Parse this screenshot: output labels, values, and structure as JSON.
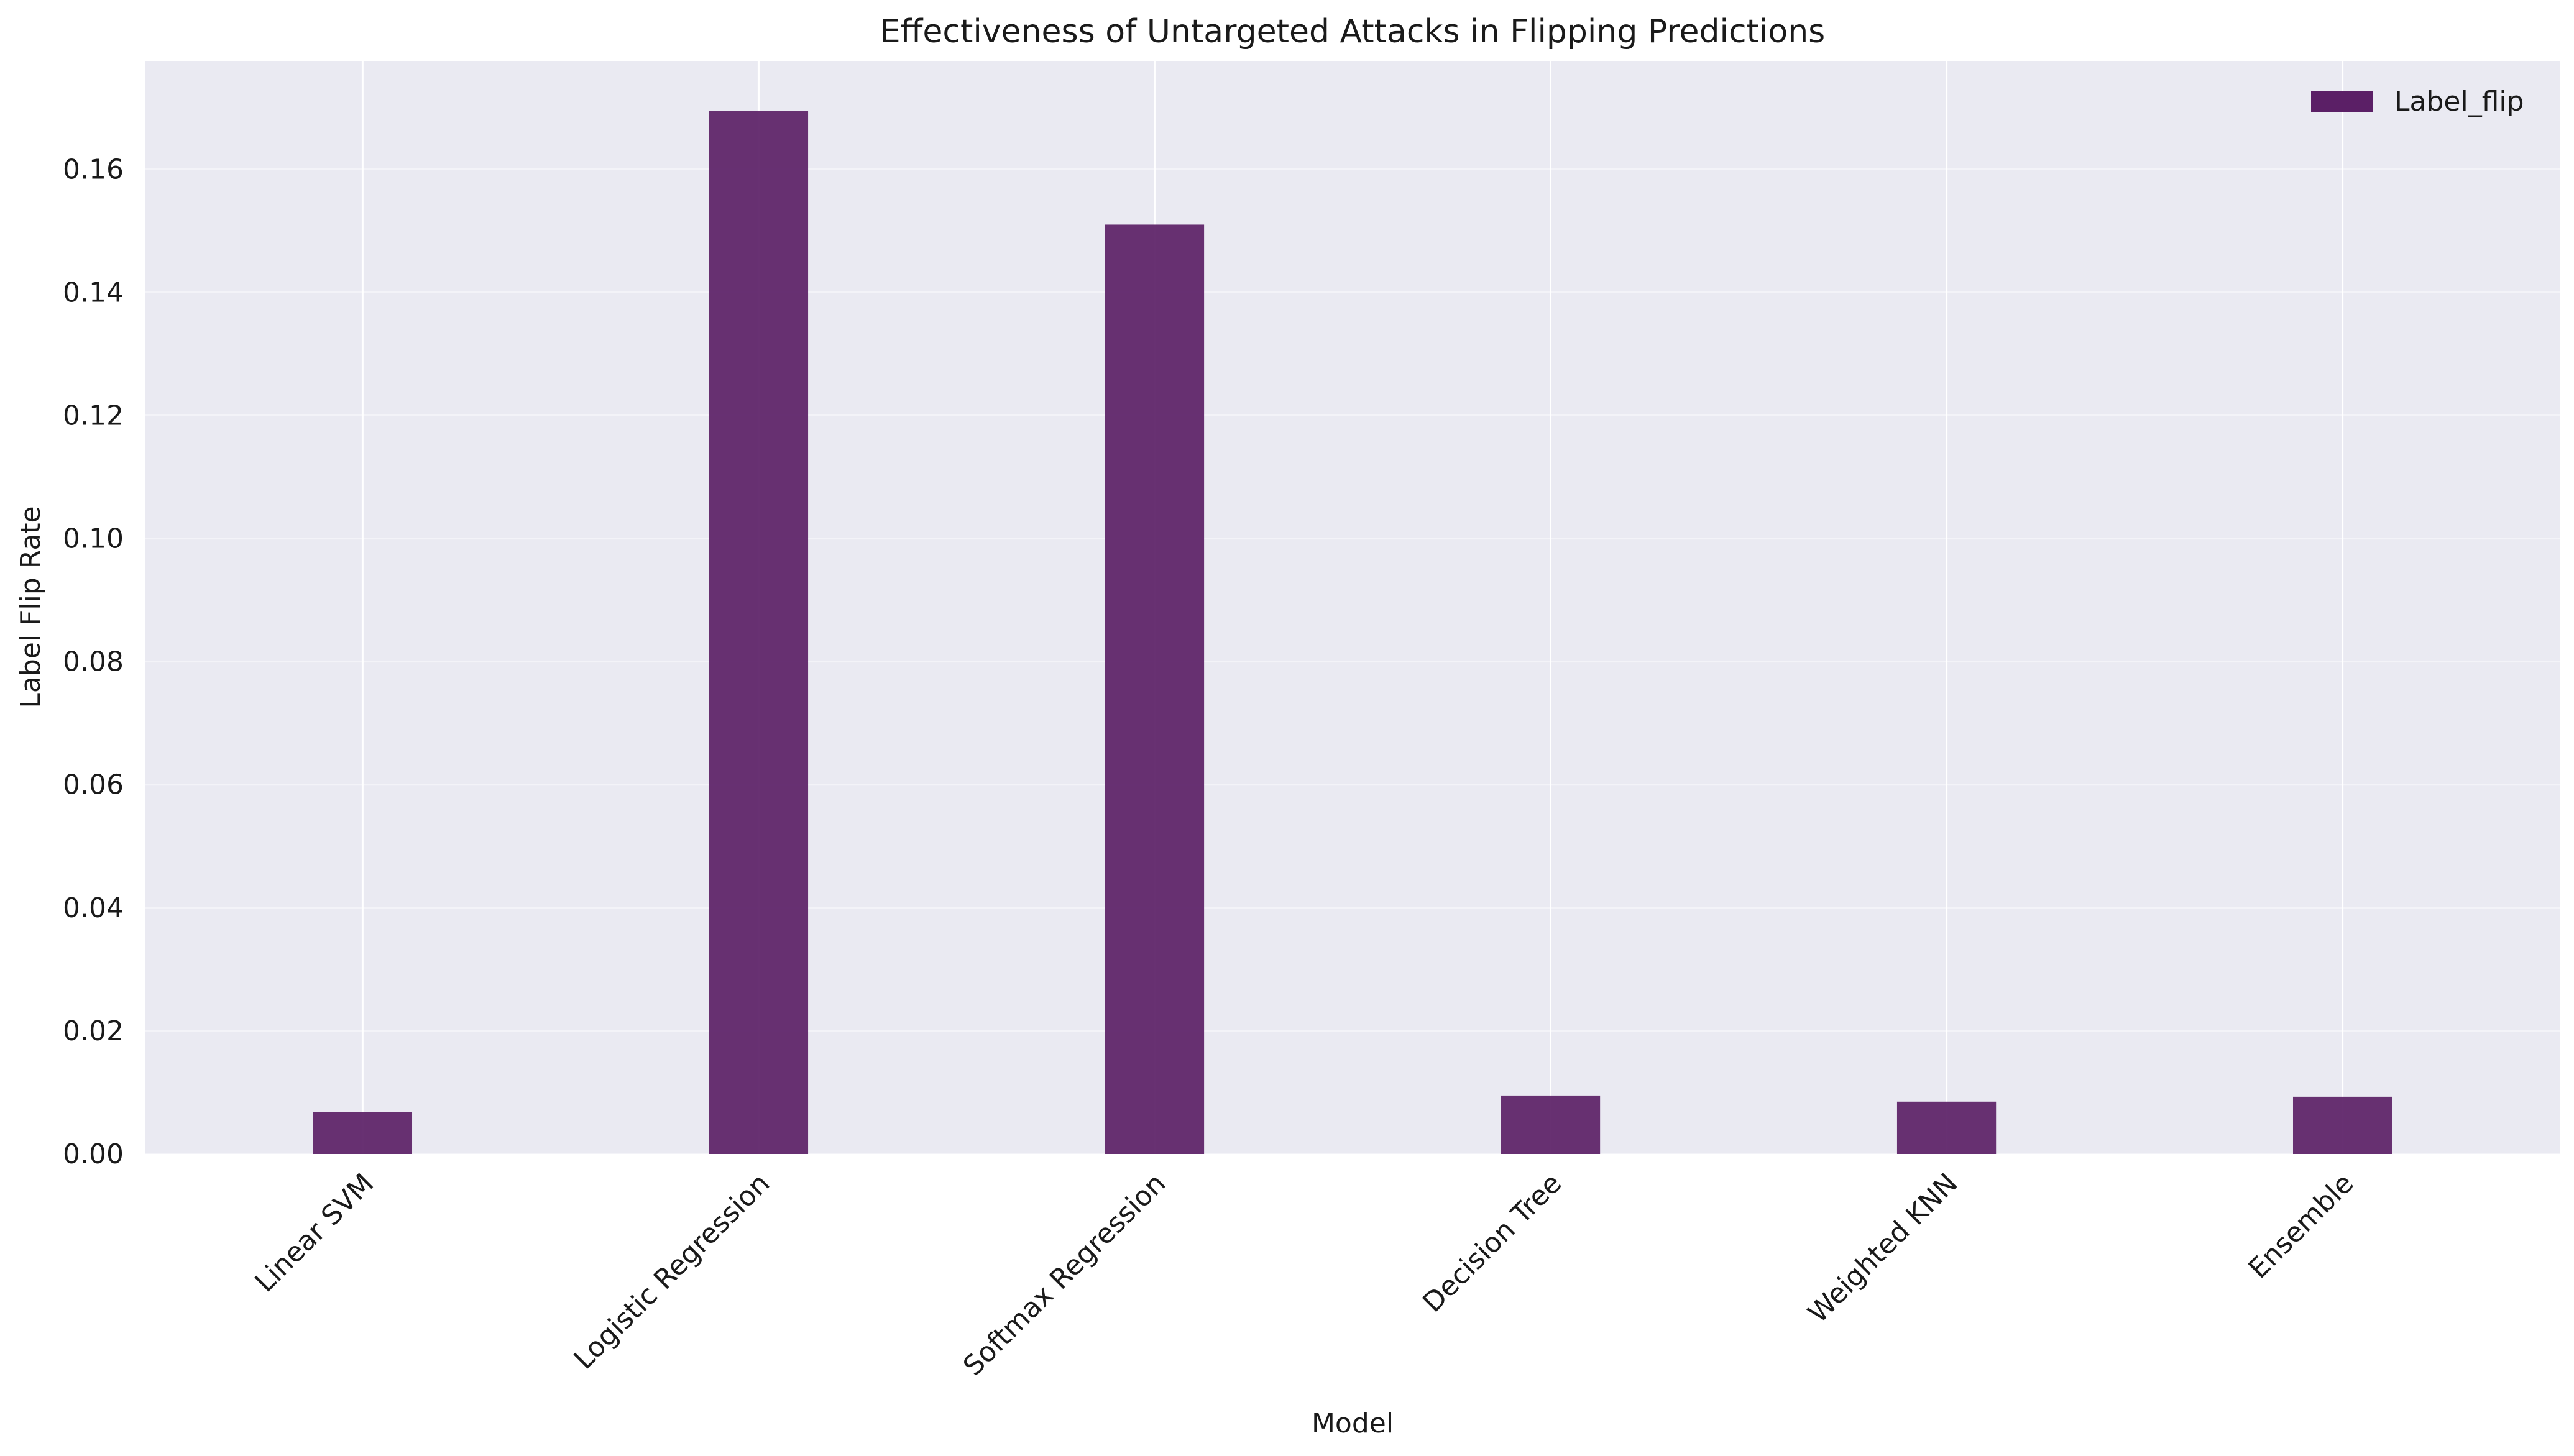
{
  "chart_data": {
    "type": "bar",
    "title": "Effectiveness of Untargeted Attacks in Flipping Predictions",
    "xlabel": "Model",
    "ylabel": "Label Flip Rate",
    "categories": [
      "Linear SVM",
      "Logistic Regression",
      "Softmax Regression",
      "Decision Tree",
      "Weighted KNN",
      "Ensemble"
    ],
    "series": [
      {
        "name": "Label_flip",
        "values": [
          0.0068,
          0.1695,
          0.151,
          0.0095,
          0.0085,
          0.0093
        ]
      }
    ],
    "ylim": [
      0,
      0.1776
    ],
    "yticks": [
      0.0,
      0.02,
      0.04,
      0.06,
      0.08,
      0.1,
      0.12,
      0.14,
      0.16
    ],
    "ytick_labels": [
      "0.00",
      "0.02",
      "0.04",
      "0.06",
      "0.08",
      "0.10",
      "0.12",
      "0.14",
      "0.16"
    ],
    "grid": true,
    "legend_position": "top-right",
    "colors": {
      "bar": "#5b1f66",
      "plot_background": "#eaeaf2",
      "grid": "#ffffff"
    }
  }
}
